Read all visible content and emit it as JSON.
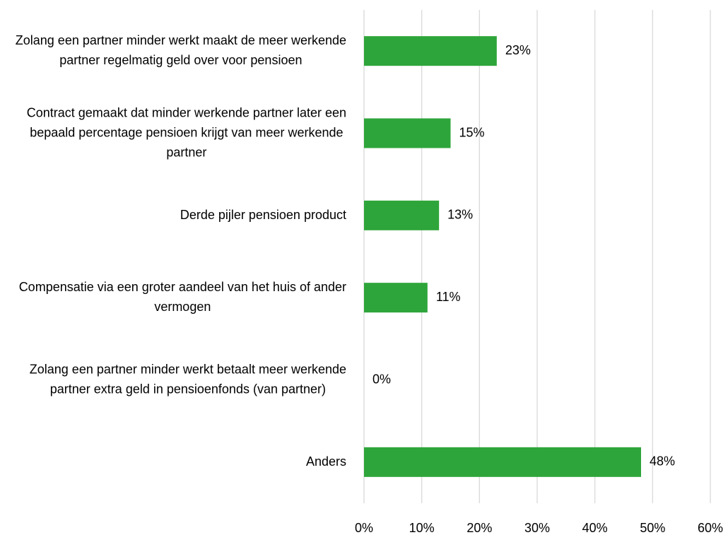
{
  "chart_data": {
    "type": "barh",
    "categories": [
      "Zolang een partner minder werkt maakt de meer werkende partner regelmatig geld over voor pensioen",
      "Contract gemaakt dat minder werkende partner later een bepaald percentage pensioen krijgt van meer werkende partner",
      "Derde pijler pensioen product",
      "Compensatie via een groter aandeel van het huis of ander vermogen",
      "Zolang een partner minder werkt betaalt meer werkende partner extra geld in pensioenfonds (van partner)",
      "Anders"
    ],
    "values": [
      23,
      15,
      13,
      11,
      0,
      48
    ],
    "value_labels": [
      "23%",
      "15%",
      "13%",
      "11%",
      "0%",
      "48%"
    ],
    "color": "#2ea53a",
    "xlim": [
      0,
      60
    ],
    "xticks": [
      {
        "value": 0,
        "label": "0%"
      },
      {
        "value": 10,
        "label": "10%"
      },
      {
        "value": 20,
        "label": "20%"
      },
      {
        "value": 30,
        "label": "30%"
      },
      {
        "value": 40,
        "label": "40%"
      },
      {
        "value": 50,
        "label": "50%"
      },
      {
        "value": 60,
        "label": "60%"
      }
    ],
    "grid": true
  }
}
